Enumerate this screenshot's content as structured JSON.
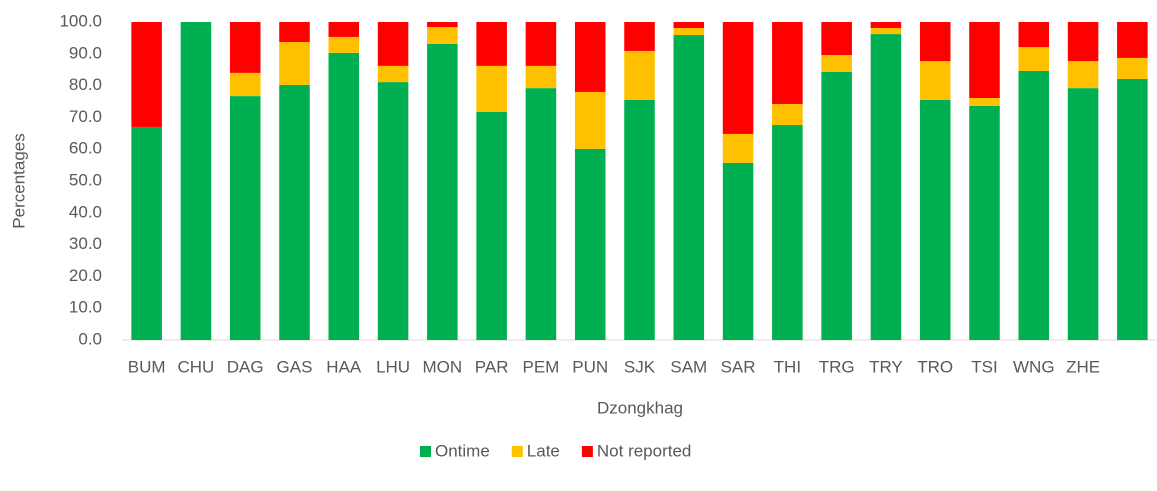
{
  "chart_data": {
    "type": "stacked_bar",
    "x_label": "Dzongkhag",
    "y_label": "Percentages",
    "categories": [
      "BUM",
      "CHU",
      "DAG",
      "GAS",
      "HAA",
      "LHU",
      "MON",
      "PAR",
      "PEM",
      "PUN",
      "SJK",
      "SAM",
      "SAR",
      "THI",
      "TRG",
      "TRY",
      "TRO",
      "TSI",
      "WNG",
      "ZHE",
      null
    ],
    "series": [
      {
        "name": "Ontime",
        "color": "#00b050",
        "values": [
          67.0,
          100,
          76.7,
          80.2,
          90.3,
          81.1,
          93.1,
          71.7,
          79.2,
          60.1,
          75.5,
          95.9,
          55.7,
          67.6,
          84.3,
          96.2,
          75.5,
          73.6,
          84.6,
          79.2,
          82.1
        ]
      },
      {
        "name": "Late",
        "color": "#ffc000",
        "values": [
          0,
          0,
          7.3,
          13.5,
          5.0,
          5.1,
          5.3,
          14.5,
          7.0,
          17.9,
          15.4,
          2.2,
          9.1,
          6.6,
          5.3,
          1.9,
          12.2,
          2.5,
          7.5,
          8.5,
          6.6
        ]
      },
      {
        "name": "Not reported",
        "color": "#ff0000",
        "values": [
          33.0,
          0,
          16.0,
          6.3,
          4.7,
          13.8,
          1.6,
          13.8,
          13.8,
          22.0,
          9.1,
          1.9,
          35.2,
          25.8,
          10.4,
          1.9,
          12.3,
          23.9,
          7.9,
          12.3,
          11.3
        ]
      }
    ],
    "ylim": [
      0,
      100
    ],
    "yticks": [
      {
        "value": 0,
        "label": "0.0"
      },
      {
        "value": 10,
        "label": "10.0"
      },
      {
        "value": 20,
        "label": "20.0"
      },
      {
        "value": 30,
        "label": "30.0"
      },
      {
        "value": 40,
        "label": "40.0"
      },
      {
        "value": 50,
        "label": "50.0"
      },
      {
        "value": 60,
        "label": "60.0"
      },
      {
        "value": 70,
        "label": "70.0"
      },
      {
        "value": 80,
        "label": "80.0"
      },
      {
        "value": 90,
        "label": "90.0"
      },
      {
        "value": 100,
        "label": "100.0"
      }
    ],
    "legend": "bottom"
  }
}
